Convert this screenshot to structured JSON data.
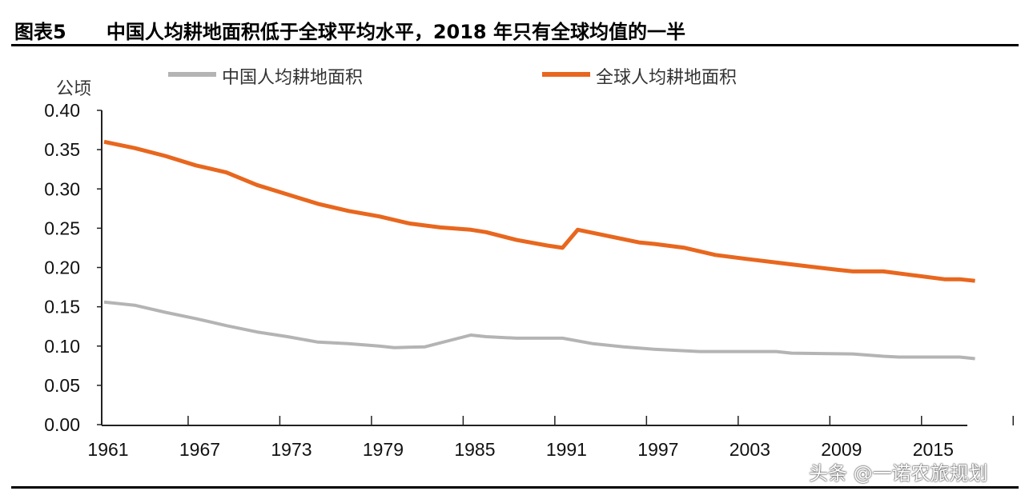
{
  "title": "图表5      中国人均耕地面积低于全球平均水平，2018 年只有全球均值的一半",
  "watermark": "头条 @一诺农旅规划",
  "chart_data": {
    "type": "line",
    "title": "图表5      中国人均耕地面积低于全球平均水平，2018 年只有全球均值的一半",
    "ylabel": "公顷",
    "xlabel": "",
    "ylim": [
      0,
      0.4
    ],
    "xlim": [
      1961,
      2018
    ],
    "yticks": [
      "0.00",
      "0.05",
      "0.10",
      "0.15",
      "0.20",
      "0.25",
      "0.30",
      "0.35",
      "0.40"
    ],
    "xticks": [
      "1961",
      "1967",
      "1973",
      "1979",
      "1985",
      "1991",
      "1997",
      "2003",
      "2009",
      "2015"
    ],
    "grid": false,
    "legend_placement": "top",
    "series": [
      {
        "name": "中国人均耕地面积",
        "color": "#b4b4b4",
        "points": [
          [
            1961,
            0.156
          ],
          [
            1963,
            0.152
          ],
          [
            1965,
            0.143
          ],
          [
            1967,
            0.135
          ],
          [
            1969,
            0.126
          ],
          [
            1971,
            0.118
          ],
          [
            1973,
            0.112
          ],
          [
            1975,
            0.105
          ],
          [
            1977,
            0.103
          ],
          [
            1979,
            0.1
          ],
          [
            1980,
            0.098
          ],
          [
            1982,
            0.099
          ],
          [
            1985,
            0.114
          ],
          [
            1986,
            0.112
          ],
          [
            1988,
            0.11
          ],
          [
            1991,
            0.11
          ],
          [
            1993,
            0.103
          ],
          [
            1995,
            0.099
          ],
          [
            1997,
            0.096
          ],
          [
            2000,
            0.093
          ],
          [
            2005,
            0.093
          ],
          [
            2006,
            0.091
          ],
          [
            2010,
            0.09
          ],
          [
            2012,
            0.087
          ],
          [
            2013,
            0.086
          ],
          [
            2017,
            0.086
          ],
          [
            2018,
            0.084
          ]
        ]
      },
      {
        "name": "全球人均耕地面积",
        "color": "#e8671e",
        "points": [
          [
            1961,
            0.36
          ],
          [
            1963,
            0.352
          ],
          [
            1965,
            0.342
          ],
          [
            1967,
            0.33
          ],
          [
            1969,
            0.321
          ],
          [
            1971,
            0.305
          ],
          [
            1973,
            0.293
          ],
          [
            1975,
            0.281
          ],
          [
            1977,
            0.272
          ],
          [
            1979,
            0.265
          ],
          [
            1981,
            0.256
          ],
          [
            1983,
            0.251
          ],
          [
            1985,
            0.248
          ],
          [
            1986,
            0.245
          ],
          [
            1988,
            0.235
          ],
          [
            1990,
            0.228
          ],
          [
            1991,
            0.225
          ],
          [
            1992,
            0.248
          ],
          [
            1994,
            0.24
          ],
          [
            1996,
            0.232
          ],
          [
            1997,
            0.23
          ],
          [
            1999,
            0.225
          ],
          [
            2001,
            0.216
          ],
          [
            2003,
            0.211
          ],
          [
            2006,
            0.204
          ],
          [
            2009,
            0.197
          ],
          [
            2010,
            0.195
          ],
          [
            2012,
            0.195
          ],
          [
            2014,
            0.19
          ],
          [
            2016,
            0.185
          ],
          [
            2017,
            0.185
          ],
          [
            2018,
            0.183
          ]
        ]
      }
    ]
  }
}
